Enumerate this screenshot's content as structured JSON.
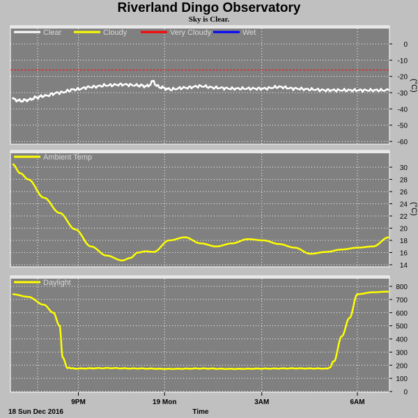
{
  "title": "Riverland Dingo Observatory",
  "subtitle": "Sky is Clear.",
  "colors": {
    "plot_bg": "#808080",
    "page_bg": "#c0c0c0",
    "grid": "#ffffff",
    "clear": "#ffffff",
    "cloudy": "#ffff00",
    "very_cloudy": "#ff0000",
    "wet": "#0000ff",
    "ambient": "#ffff00",
    "daylight": "#ffff00"
  },
  "x_axis": {
    "label": "Time",
    "start_label": "18 Sun Dec 2016",
    "ticks": [
      "9PM",
      "19 Mon",
      "3AM",
      "6AM"
    ]
  },
  "chart_data": [
    {
      "type": "line",
      "name": "sky",
      "legend": [
        "Clear",
        "Cloudy",
        "Very Cloudy",
        "Wet"
      ],
      "unit": "(°C)",
      "ylim": [
        -60,
        5
      ],
      "yticks": [
        "0",
        "-10",
        "-20",
        "-30",
        "-40",
        "-50",
        "-60"
      ],
      "threshold_very_cloudy": -16,
      "x_hours": [
        0,
        0.25,
        0.5,
        0.75,
        1,
        1.5,
        2,
        2.5,
        3,
        3.5,
        4,
        4.3,
        4.5,
        4.6,
        4.8,
        5,
        5.5,
        6,
        6.5,
        7,
        7.5,
        8,
        8.5,
        9,
        9.5,
        10,
        10.5,
        11,
        11.5,
        12
      ],
      "values": [
        -34,
        -35,
        -34.5,
        -33,
        -32,
        -30,
        -28,
        -26.5,
        -25.5,
        -25,
        -25.5,
        -26,
        -23,
        -26,
        -27,
        -28,
        -27,
        -26,
        -27,
        -27.5,
        -27.5,
        -27.5,
        -26.5,
        -27.5,
        -28,
        -28.5,
        -28.5,
        -28.5,
        -28.5,
        -28.5
      ]
    },
    {
      "type": "line",
      "name": "Ambient Temp",
      "legend": [
        "Ambient Temp"
      ],
      "unit": "(°C)",
      "ylim": [
        14,
        31
      ],
      "yticks": [
        "30",
        "28",
        "26",
        "24",
        "22",
        "20",
        "18",
        "16",
        "14"
      ],
      "x_hours": [
        0,
        0.25,
        0.5,
        1,
        1.5,
        2,
        2.5,
        3,
        3.5,
        3.75,
        4,
        4.25,
        4.5,
        5,
        5.5,
        6,
        6.5,
        7,
        7.5,
        8,
        8.5,
        9,
        9.5,
        10,
        10.5,
        11,
        11.5,
        12
      ],
      "values": [
        30.5,
        29,
        28,
        25,
        22.5,
        19.8,
        17,
        15.5,
        14.7,
        15.1,
        16,
        16.2,
        16.1,
        18,
        18.5,
        17.5,
        17,
        17.5,
        18.2,
        18,
        17.4,
        16.8,
        15.8,
        16.1,
        16.5,
        16.8,
        17,
        18.5
      ]
    },
    {
      "type": "line",
      "name": "Daylight",
      "legend": [
        "Daylight"
      ],
      "unit": "",
      "ylim": [
        0,
        820
      ],
      "yticks": [
        "800",
        "700",
        "600",
        "500",
        "400",
        "300",
        "200",
        "100",
        "0"
      ],
      "x_hours": [
        0,
        0.5,
        1,
        1.3,
        1.5,
        1.6,
        1.75,
        2,
        3,
        4,
        5,
        6,
        7,
        8,
        9,
        10,
        10.1,
        10.25,
        10.5,
        10.75,
        11,
        11.5,
        12
      ],
      "values": [
        740,
        720,
        660,
        600,
        500,
        260,
        180,
        175,
        178,
        175,
        172,
        175,
        172,
        174,
        176,
        175,
        178,
        230,
        420,
        560,
        740,
        755,
        760
      ]
    }
  ]
}
